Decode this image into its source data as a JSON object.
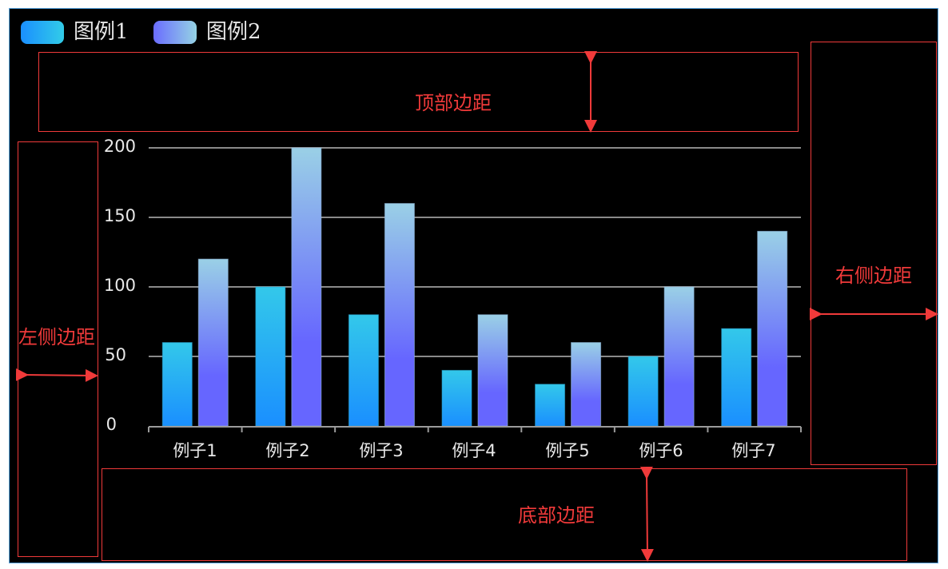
{
  "legend": {
    "items": [
      {
        "label": "图例1",
        "gradient": [
          "#1a8fff",
          "#32cce8"
        ]
      },
      {
        "label": "图例2",
        "gradient": [
          "#6a6cff",
          "#95d3e4"
        ]
      }
    ]
  },
  "annotations": {
    "top": "顶部边距",
    "left": "左侧边距",
    "right": "右侧边距",
    "bottom": "底部边距",
    "color": "#f03a3a"
  },
  "chart_data": {
    "type": "bar",
    "title": "",
    "xlabel": "",
    "ylabel": "",
    "categories": [
      "例子1",
      "例子2",
      "例子3",
      "例子4",
      "例子5",
      "例子6",
      "例子7"
    ],
    "series": [
      {
        "name": "图例1",
        "values": [
          60,
          100,
          80,
          40,
          30,
          50,
          70
        ],
        "color_top": "#33c8ea",
        "color_bottom": "#1a8fff"
      },
      {
        "name": "图例2",
        "values": [
          120,
          200,
          160,
          80,
          60,
          100,
          140
        ],
        "color_top": "#9ad0e6",
        "color_bottom": "#6666ff"
      }
    ],
    "yticks": [
      0,
      50,
      100,
      150,
      200
    ],
    "ylim": [
      0,
      200
    ],
    "grid": true,
    "legend_position": "top-left",
    "background": "#000000"
  }
}
